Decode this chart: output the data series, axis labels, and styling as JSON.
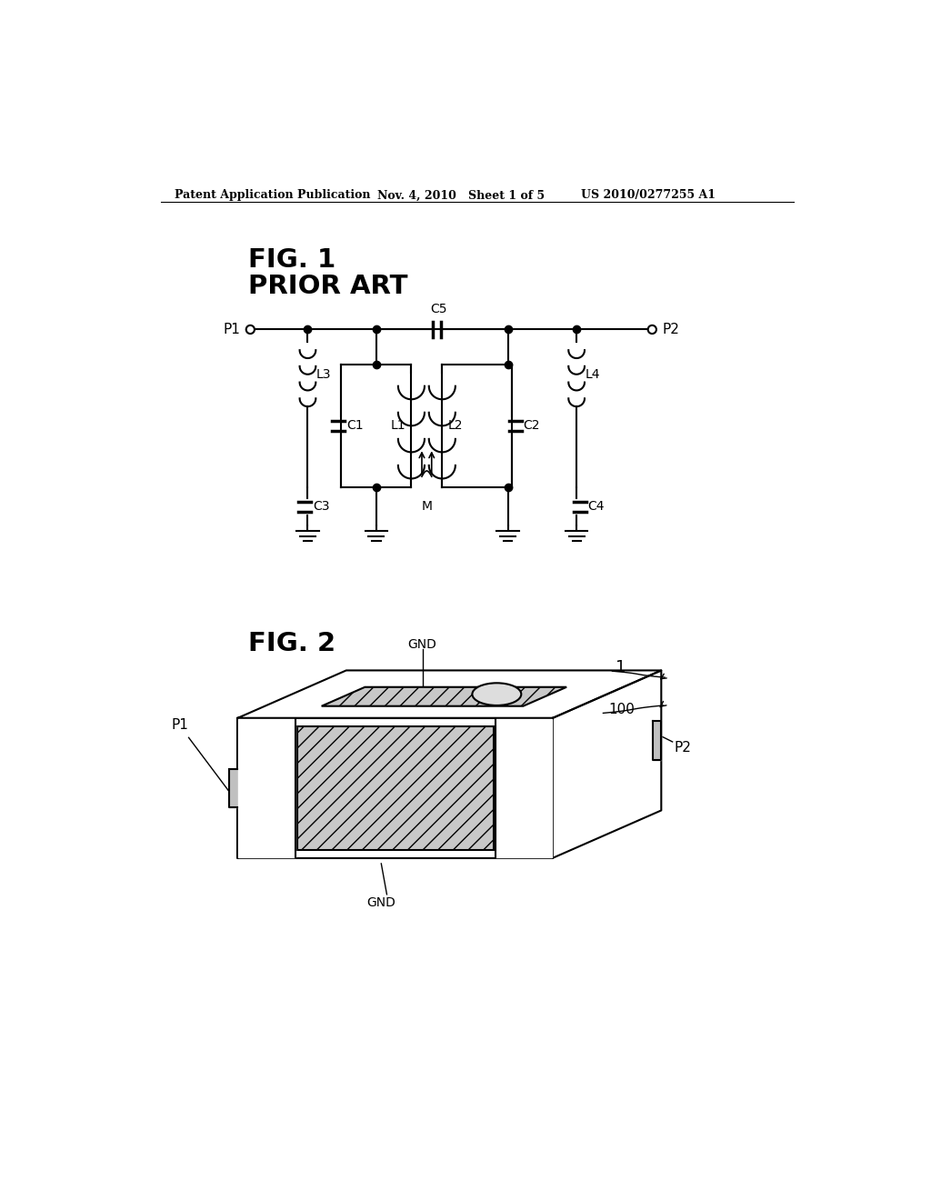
{
  "header_left": "Patent Application Publication",
  "header_mid": "Nov. 4, 2010   Sheet 1 of 5",
  "header_right": "US 2010/0277255 A1",
  "fig1_title": "FIG. 1",
  "fig1_subtitle": "PRIOR ART",
  "fig2_title": "FIG. 2",
  "background_color": "#ffffff",
  "line_color": "#000000"
}
